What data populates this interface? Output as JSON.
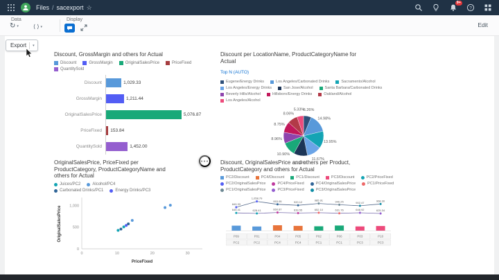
{
  "shell": {
    "breadcrumb_root": "Files",
    "breadcrumb_sep": "/",
    "title": "sacexport",
    "notification_count": "9+"
  },
  "toolbar": {
    "data_label": "Data",
    "display_label": "Display",
    "edit_label": "Edit"
  },
  "export": {
    "label": "Export"
  },
  "icons": {
    "favorite": "☆",
    "caret": "▾",
    "refresh": "↻",
    "code": "⟨ ⟩",
    "more": "●●●"
  },
  "colors": {
    "shell_bg": "#203245",
    "accent": "#0a6ed1",
    "avatar_bg": "#3fa45b",
    "badge_bg": "#e5383b"
  },
  "chart_data": [
    {
      "type": "bar",
      "title": "Discount, GrossMargin and others for Actual",
      "orientation": "horizontal",
      "legend_position": "top",
      "categories": [
        "Discount",
        "GrossMargin",
        "OriginalSalesPrice",
        "PriceFixed",
        "QuantitySold"
      ],
      "values": [
        1029.33,
        1211.44,
        5076.87,
        153.84,
        1452.0
      ],
      "value_labels": [
        "1,029.33",
        "1,211.44",
        "5,076.87",
        "153.84",
        "1,452.00"
      ],
      "colors": [
        "#5899DA",
        "#525DF4",
        "#19A979",
        "#A63D40",
        "#945ECF"
      ],
      "xlim": [
        0,
        5500
      ]
    },
    {
      "type": "pie",
      "title": "Discount per LocationName, ProductCategoryName for Actual",
      "filter_label": "Top N (AUTO)",
      "legend_position": "top",
      "legend": [
        "Eugene/Energy Drinks",
        "Los Angeles/Carbonated Drinks",
        "Sacramento/Alcohol",
        "Los Angeles/Energy Drinks",
        "San Jose/Alcohol",
        "Santa Barbara/Carbonated Drinks",
        "Beverly Hills/Alcohol",
        "Hillsboro/Energy Drinks",
        "Oakland/Alcohol",
        "Los Angeles/Alcohol"
      ],
      "values": [
        6.26,
        14.98,
        13.95,
        11.67,
        11.14,
        10.9,
        8.96,
        8.75,
        8.06,
        5.33
      ],
      "labels": [
        "6.26%",
        "14.98%",
        "13.95%",
        "11.67%",
        "11.14%",
        "10.90%",
        "8.96%",
        "8.75%",
        "8.06%",
        "5.33%"
      ],
      "colors": [
        "#2E4F7A",
        "#5899DA",
        "#13A4B4",
        "#6BA4E7",
        "#1C3557",
        "#19A979",
        "#8E44AD",
        "#C2185B",
        "#B23A48",
        "#ED4A7B"
      ]
    },
    {
      "type": "scatter",
      "title": "OriginalSalesPrice, PriceFixed per ProductCategory, ProductCategoryName and others for Actual",
      "xlabel": "PriceFixed",
      "ylabel": "OriginalSalesPrice",
      "legend_position": "top",
      "legend": [
        {
          "label": "Juices/PC2",
          "color": "#13A4B4"
        },
        {
          "label": "Alcohol/PC4",
          "color": "#5899DA"
        },
        {
          "label": "Carbonated Drinks/PC1",
          "color": "#2F6497"
        },
        {
          "label": "Energy Drinks/PC3",
          "color": "#525DF4"
        }
      ],
      "x_ticks": [
        {
          "label": "0",
          "v": 0
        },
        {
          "label": "10",
          "v": 10
        },
        {
          "label": "20",
          "v": 20
        },
        {
          "label": "30",
          "v": 30
        }
      ],
      "y_ticks": [
        {
          "label": "0",
          "v": 0
        },
        {
          "label": "500",
          "v": 500
        },
        {
          "label": "1,000",
          "v": 1000
        }
      ],
      "xlim": [
        0,
        33
      ],
      "ylim": [
        0,
        1150
      ],
      "points": [
        {
          "x": 10.3,
          "y": 425,
          "s": 0
        },
        {
          "x": 11.1,
          "y": 455,
          "s": 2
        },
        {
          "x": 11.9,
          "y": 505,
          "s": 0
        },
        {
          "x": 12.6,
          "y": 540,
          "s": 3
        },
        {
          "x": 13.2,
          "y": 575,
          "s": 2
        },
        {
          "x": 14.3,
          "y": 655,
          "s": 1
        },
        {
          "x": 23.6,
          "y": 950,
          "s": 1
        },
        {
          "x": 25.1,
          "y": 1005,
          "s": 1
        }
      ]
    },
    {
      "type": "combo",
      "title": "Discount, OriginalSalesPrice and others per Product, ProductCategory and others for Actual",
      "legend_position": "top",
      "bars_measure": "Discount",
      "line1_measure": "OriginalSalesPrice",
      "line2_measure": "PriceFixed",
      "legend_bars": [
        {
          "label": "PC2/Discount",
          "color": "#5899DA"
        },
        {
          "label": "PC4/Discount",
          "color": "#E8743B"
        },
        {
          "label": "PC1/Discount",
          "color": "#19A979"
        },
        {
          "label": "PC3/Discount",
          "color": "#ED4A7B"
        }
      ],
      "legend_lines": [
        {
          "label": "PC2/PriceFixed",
          "color": "#13A4B4"
        },
        {
          "label": "PC2/OriginalSalesPrice",
          "color": "#525DF4"
        },
        {
          "label": "PC4/PriceFixed",
          "color": "#BF399E"
        },
        {
          "label": "PC4/OriginalSalesPrice",
          "color": "#2F6497"
        },
        {
          "label": "PC1/PriceFixed",
          "color": "#EE6868"
        },
        {
          "label": "PC1/OriginalSalesPrice",
          "color": "#6C8893"
        },
        {
          "label": "PC3/PriceFixed",
          "color": "#945ECF"
        },
        {
          "label": "PC3/OriginalSalesPrice",
          "color": "#0E8CA5"
        }
      ],
      "categories": [
        "P09",
        "P01",
        "P04",
        "P05",
        "P02",
        "P06",
        "P03",
        "P10"
      ],
      "category_groups": [
        "PC2",
        "PC2",
        "PC4",
        "PC4",
        "PC1",
        "PC1",
        "PC3",
        "PC3"
      ],
      "bar_values": [
        185.4,
        153.84,
        201.12,
        176.35,
        162.2,
        190.8,
        158.66,
        172.45
      ],
      "line1_values": [
        849.33,
        1058.79,
        953.95,
        920.12,
        985.91,
        940.25,
        902.47,
        968.3
      ],
      "line1_labels": [
        "849.33",
        "1,058.79",
        "953.95",
        "920.12",
        "985.91",
        "940.25",
        "902.47",
        "968.30"
      ],
      "line2_values": [
        645.41,
        628.41,
        660.87,
        639.55,
        652.1,
        631.76,
        648.92,
        625.34
      ],
      "line2_labels": [
        "645.41",
        "628.41",
        "660.87",
        "639.55",
        "652.10",
        "631.76",
        "648.92",
        "625.34"
      ],
      "ylim": [
        0,
        1200
      ]
    }
  ]
}
